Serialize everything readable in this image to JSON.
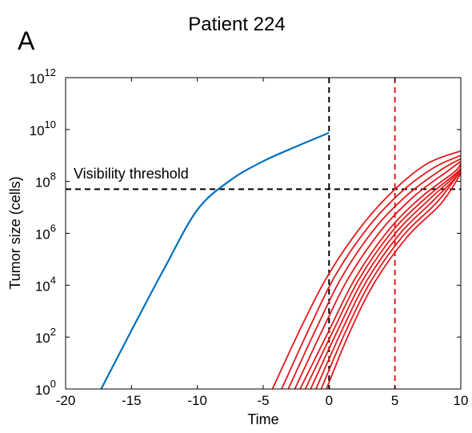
{
  "chart_data": {
    "type": "line",
    "title": "Patient 224",
    "panel_label": "A",
    "xlabel": "Time",
    "ylabel": "Tumor size (cells)",
    "xlim": [
      -20,
      10
    ],
    "ylim": [
      1,
      1000000000000.0
    ],
    "yscale": "log",
    "xticks": [
      -20,
      -15,
      -10,
      -5,
      0,
      5,
      10
    ],
    "xtick_labels": [
      "-20",
      "-15",
      "-10",
      "-5",
      "0",
      "5",
      "10"
    ],
    "yticks": [
      1,
      100,
      10000,
      1000000,
      100000000,
      10000000000,
      1000000000000
    ],
    "ytick_labels": [
      {
        "base": "10",
        "exp": "0"
      },
      {
        "base": "10",
        "exp": "2"
      },
      {
        "base": "10",
        "exp": "4"
      },
      {
        "base": "10",
        "exp": "6"
      },
      {
        "base": "10",
        "exp": "8"
      },
      {
        "base": "10",
        "exp": "10"
      },
      {
        "base": "10",
        "exp": "12"
      }
    ],
    "colors": {
      "blue": "#0072bd",
      "red": "#e31a1c",
      "black": "#000000"
    },
    "series": [
      {
        "color": "#0072bd",
        "x": [
          -17.3,
          -15,
          -12.5,
          -10,
          -7.5,
          -5,
          -2.5,
          0
        ],
        "y": [
          1,
          180.0,
          45000.0,
          8000000.0,
          110000000.0,
          600000000.0,
          2200000000.0,
          7500000000.0
        ]
      }
    ],
    "red_curves": [
      {
        "x": [
          -4.3,
          -2,
          0,
          2.5,
          5,
          7.5,
          10
        ],
        "y": [
          1,
          320.0,
          28000.0,
          2000000.0,
          50000000.0,
          500000000.0,
          1500000000.0
        ]
      },
      {
        "x": [
          -3.6,
          -1.5,
          0.5,
          3,
          5.5,
          8,
          10
        ],
        "y": [
          1,
          220.0,
          25000.0,
          1800000.0,
          40000000.0,
          350000000.0,
          1000000000.0
        ]
      },
      {
        "x": [
          -3.1,
          -1,
          1,
          3.5,
          6,
          8.5,
          10
        ],
        "y": [
          1,
          200.0,
          22000.0,
          1600000.0,
          32000000.0,
          280000000.0,
          750000000.0
        ]
      },
      {
        "x": [
          -2.6,
          -0.5,
          1.5,
          4,
          6.5,
          9,
          10
        ],
        "y": [
          1,
          190.0,
          20000.0,
          1400000.0,
          28000000.0,
          250000000.0,
          600000000.0
        ]
      },
      {
        "x": [
          -2.2,
          0,
          2,
          4.5,
          7,
          9.5,
          10
        ],
        "y": [
          1,
          180.0,
          19000.0,
          1300000.0,
          25000000.0,
          230000000.0,
          500000000.0
        ]
      },
      {
        "x": [
          -1.8,
          0.3,
          2.3,
          4.8,
          7.3,
          9.7,
          10
        ],
        "y": [
          1,
          170.0,
          18000.0,
          1200000.0,
          22000000.0,
          220000000.0,
          420000000.0
        ]
      },
      {
        "x": [
          -1.4,
          0.6,
          2.6,
          5.1,
          7.6,
          9.8,
          10
        ],
        "y": [
          1,
          160.0,
          17000.0,
          1100000.0,
          20000000.0,
          210000000.0,
          350000000.0
        ]
      },
      {
        "x": [
          -1.0,
          0.9,
          2.9,
          5.4,
          7.9,
          9.9,
          10
        ],
        "y": [
          1,
          150.0,
          16000.0,
          1000000.0,
          18000000.0,
          200000000.0,
          300000000.0
        ]
      },
      {
        "x": [
          -0.6,
          1.2,
          3.2,
          5.7,
          8.2,
          10
        ],
        "y": [
          1,
          140.0,
          15000.0,
          900000.0,
          16000000.0,
          250000000.0
        ]
      },
      {
        "x": [
          -0.2,
          1.5,
          3.5,
          6.0,
          8.5,
          10
        ],
        "y": [
          1,
          130.0,
          14000.0,
          800000.0,
          14000000.0,
          200000000.0
        ]
      }
    ],
    "reference_lines": [
      {
        "orientation": "horizontal",
        "value": 50000000.0,
        "color": "#000000",
        "style": "dashed"
      },
      {
        "orientation": "vertical",
        "value": 0,
        "color": "#000000",
        "style": "dashed"
      },
      {
        "orientation": "vertical",
        "value": 5,
        "color": "#e31a1c",
        "style": "dashed"
      }
    ],
    "annotation": {
      "text": "Visibility threshold"
    }
  }
}
